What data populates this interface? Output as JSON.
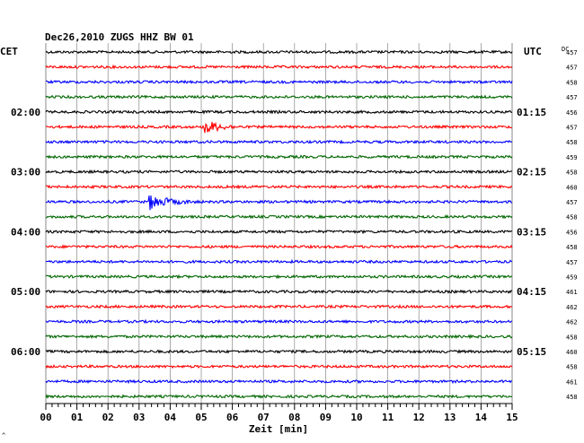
{
  "chart_data": {
    "type": "line",
    "title": "Dec26,2010   ZUGS HHZ BW 01",
    "left_timezone": "CET",
    "right_timezone": "UTC",
    "dc_header": "DC",
    "xlabel": "Zeit [min]",
    "xlim": [
      0,
      15
    ],
    "x_ticks": [
      "00",
      "01",
      "02",
      "03",
      "04",
      "05",
      "06",
      "07",
      "08",
      "09",
      "10",
      "11",
      "12",
      "13",
      "14",
      "15"
    ],
    "trace_colors": [
      "#000000",
      "#ff0000",
      "#0000ff",
      "#006600"
    ],
    "grid": true,
    "left_hour_labels": [
      {
        "trace": 4,
        "label": "02:00"
      },
      {
        "trace": 8,
        "label": "03:00"
      },
      {
        "trace": 12,
        "label": "04:00"
      },
      {
        "trace": 16,
        "label": "05:00"
      },
      {
        "trace": 20,
        "label": "06:00"
      }
    ],
    "right_hour_labels": [
      {
        "trace": 4,
        "label": "01:15"
      },
      {
        "trace": 8,
        "label": "02:15"
      },
      {
        "trace": 12,
        "label": "03:15"
      },
      {
        "trace": 16,
        "label": "04:15"
      },
      {
        "trace": 20,
        "label": "05:15"
      }
    ],
    "dc_offsets": [
      "457",
      "457",
      "458",
      "457",
      "456",
      "457",
      "458",
      "459",
      "458",
      "460",
      "457",
      "458",
      "456",
      "458",
      "457",
      "459",
      "461",
      "462",
      "462",
      "458",
      "460",
      "458",
      "461",
      "458"
    ],
    "events": [
      {
        "trace": 5,
        "start_min": 5.1,
        "duration_min": 1.2
      },
      {
        "trace": 10,
        "start_min": 3.3,
        "duration_min": 1.6
      }
    ],
    "footer_mark": "^"
  }
}
